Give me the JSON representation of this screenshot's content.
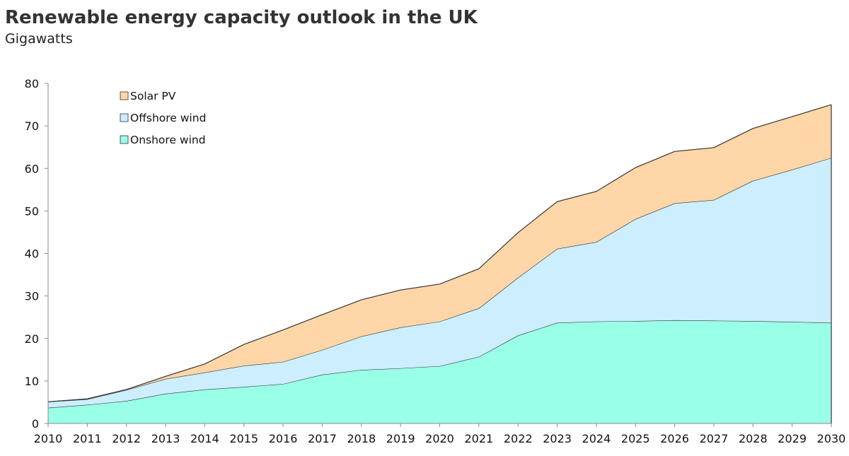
{
  "chart_data": {
    "type": "area",
    "stacked": true,
    "title": "Renewable energy capacity outlook in the UK",
    "subtitle": "Gigawatts",
    "xlabel": "",
    "ylabel": "",
    "x": [
      2010,
      2011,
      2012,
      2013,
      2014,
      2015,
      2016,
      2017,
      2018,
      2019,
      2020,
      2021,
      2022,
      2023,
      2024,
      2025,
      2026,
      2027,
      2028,
      2029,
      2030
    ],
    "ylim": [
      0,
      80
    ],
    "yticks": [
      0,
      10,
      20,
      30,
      40,
      50,
      60,
      70,
      80
    ],
    "grid": false,
    "legend_position": "top-left",
    "series": [
      {
        "name": "Onshore wind",
        "color": "#99ffe6",
        "values": [
          3.7,
          4.4,
          5.3,
          7.0,
          8.0,
          8.6,
          9.3,
          11.5,
          12.6,
          13.0,
          13.5,
          15.7,
          20.7,
          23.7,
          24.0,
          24.1,
          24.3,
          24.2,
          24.1,
          23.9,
          23.7
        ]
      },
      {
        "name": "Offshore wind",
        "color": "#cceeff",
        "values": [
          1.4,
          1.3,
          2.6,
          3.5,
          4.0,
          5.0,
          5.2,
          5.8,
          7.9,
          9.6,
          10.5,
          11.4,
          13.6,
          17.4,
          18.7,
          24.0,
          27.5,
          28.4,
          33.0,
          35.8,
          38.8
        ]
      },
      {
        "name": "Solar PV",
        "color": "#ffd6a8",
        "values": [
          0,
          0.1,
          0.1,
          0.6,
          2.0,
          5.0,
          7.5,
          8.3,
          8.6,
          8.8,
          8.8,
          9.3,
          10.6,
          11.1,
          11.9,
          12.1,
          12.2,
          12.3,
          12.3,
          12.5,
          12.5
        ]
      }
    ],
    "legend_order": [
      "Solar PV",
      "Offshore wind",
      "Onshore wind"
    ]
  }
}
